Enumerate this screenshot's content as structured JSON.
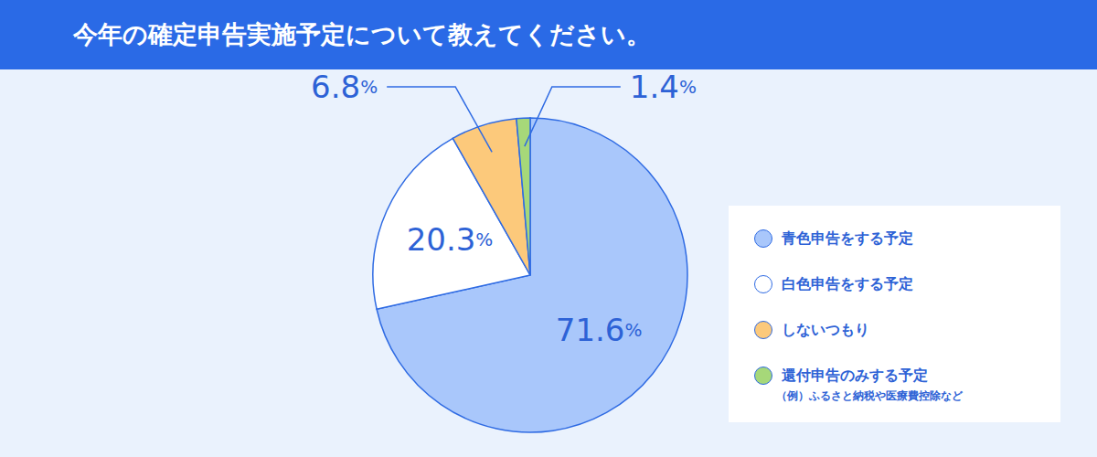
{
  "chart_data": {
    "type": "pie",
    "title": "今年の確定申告実施予定について教えてください。",
    "categories": [
      "青色申告をする予定",
      "白色申告をする予定",
      "しないつもり",
      "還付申告のみする予定"
    ],
    "values": [
      71.6,
      20.3,
      6.8,
      1.4
    ],
    "value_labels": [
      "71.6%",
      "20.3%",
      "6.8%",
      "1.4%"
    ],
    "colors": [
      "#a9c7fb",
      "#ffffff",
      "#fcc97b",
      "#a6d879"
    ],
    "data_labels": true,
    "legend": "right",
    "annotations": [
      "（例）ふるさと納税や医療費控除など"
    ]
  }
}
